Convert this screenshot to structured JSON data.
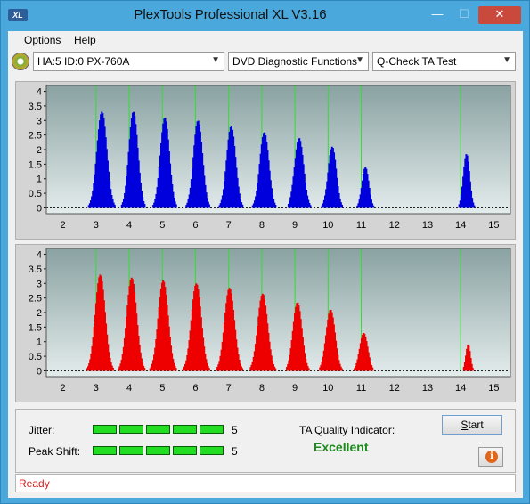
{
  "window": {
    "title": "PlexTools Professional XL V3.16",
    "icon_label": "XL",
    "buttons": {
      "minimize": "—",
      "maximize": "☐",
      "close": "✕"
    }
  },
  "menu": {
    "options_label": "Options",
    "options_key": "O",
    "help_label": "Help",
    "help_key": "H"
  },
  "toolbar": {
    "drive": "HA:5 ID:0  PX-760A",
    "function": "DVD Diagnostic Functions",
    "test": "Q-Check TA Test"
  },
  "chart_data": [
    {
      "type": "bar",
      "name": "top",
      "color": "#0000dd",
      "x_ticks": [
        "2",
        "3",
        "4",
        "5",
        "6",
        "7",
        "8",
        "9",
        "10",
        "11",
        "12",
        "13",
        "14",
        "15"
      ],
      "y_ticks": [
        "0",
        "0.5",
        "1",
        "1.5",
        "2",
        "2.5",
        "3",
        "3.5",
        "4"
      ],
      "xlim": [
        1.5,
        15.5
      ],
      "ylim": [
        -0.2,
        4.2
      ],
      "marker_lines": [
        3,
        4,
        5,
        6,
        7,
        8,
        9,
        10,
        11,
        14
      ],
      "peaks": [
        {
          "center": 3.15,
          "height": 3.3,
          "width": 0.22
        },
        {
          "center": 4.1,
          "height": 3.3,
          "width": 0.2
        },
        {
          "center": 5.05,
          "height": 3.1,
          "width": 0.2
        },
        {
          "center": 6.05,
          "height": 3.0,
          "width": 0.2
        },
        {
          "center": 7.05,
          "height": 2.8,
          "width": 0.2
        },
        {
          "center": 8.05,
          "height": 2.6,
          "width": 0.2
        },
        {
          "center": 9.1,
          "height": 2.4,
          "width": 0.2
        },
        {
          "center": 10.1,
          "height": 2.1,
          "width": 0.18
        },
        {
          "center": 11.1,
          "height": 1.4,
          "width": 0.15
        },
        {
          "center": 14.15,
          "height": 1.85,
          "width": 0.14
        }
      ]
    },
    {
      "type": "bar",
      "name": "bottom",
      "color": "#ee0000",
      "x_ticks": [
        "2",
        "3",
        "4",
        "5",
        "6",
        "7",
        "8",
        "9",
        "10",
        "11",
        "12",
        "13",
        "14",
        "15"
      ],
      "y_ticks": [
        "0",
        "0.5",
        "1",
        "1.5",
        "2",
        "2.5",
        "3",
        "3.5",
        "4"
      ],
      "xlim": [
        1.5,
        15.5
      ],
      "ylim": [
        -0.2,
        4.2
      ],
      "marker_lines": [
        3,
        4,
        5,
        6,
        7,
        8,
        9,
        10,
        11,
        14
      ],
      "peaks": [
        {
          "center": 3.1,
          "height": 3.3,
          "width": 0.22
        },
        {
          "center": 4.05,
          "height": 3.2,
          "width": 0.22
        },
        {
          "center": 5.0,
          "height": 3.1,
          "width": 0.22
        },
        {
          "center": 6.0,
          "height": 3.0,
          "width": 0.22
        },
        {
          "center": 7.0,
          "height": 2.85,
          "width": 0.22
        },
        {
          "center": 8.0,
          "height": 2.65,
          "width": 0.22
        },
        {
          "center": 9.05,
          "height": 2.35,
          "width": 0.2
        },
        {
          "center": 10.05,
          "height": 2.1,
          "width": 0.2
        },
        {
          "center": 11.05,
          "height": 1.3,
          "width": 0.18
        },
        {
          "center": 14.2,
          "height": 0.9,
          "width": 0.1
        }
      ]
    }
  ],
  "results": {
    "jitter_label": "Jitter:",
    "jitter_value": "5",
    "jitter_segments": 5,
    "peak_label": "Peak Shift:",
    "peak_value": "5",
    "peak_segments": 5,
    "ta_label": "TA Quality Indicator:",
    "ta_value": "Excellent",
    "start_label": "Start",
    "start_key": "S",
    "info_label": "i"
  },
  "status": {
    "text": "Ready"
  }
}
